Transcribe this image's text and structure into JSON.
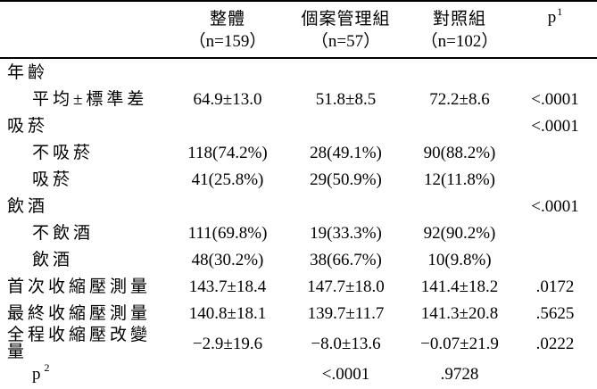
{
  "table": {
    "header": {
      "row_label": "",
      "columns": [
        {
          "title": "整體",
          "n": "（n=159）"
        },
        {
          "title": "個案管理組",
          "n": "（n=57）"
        },
        {
          "title": "對照組",
          "n": "（n=102）"
        }
      ],
      "p_label": "p",
      "p_sup": "1"
    },
    "rows": [
      {
        "label": "年齡",
        "indent": false,
        "values": [
          "",
          "",
          "",
          ""
        ]
      },
      {
        "label": "平均±標準差",
        "indent": true,
        "values": [
          "64.9±13.0",
          "51.8±8.5",
          "72.2±8.6",
          "<.0001"
        ]
      },
      {
        "label": "吸菸",
        "indent": false,
        "values": [
          "",
          "",
          "",
          "<.0001"
        ]
      },
      {
        "label": "不吸菸",
        "indent": true,
        "values": [
          "118(74.2%)",
          "28(49.1%)",
          "90(88.2%)",
          ""
        ]
      },
      {
        "label": "吸菸",
        "indent": true,
        "values": [
          "41(25.8%)",
          "29(50.9%)",
          "12(11.8%)",
          ""
        ]
      },
      {
        "label": "飲酒",
        "indent": false,
        "values": [
          "",
          "",
          "",
          "<.0001"
        ]
      },
      {
        "label": "不飲酒",
        "indent": true,
        "values": [
          "111(69.8%)",
          "19(33.3%)",
          "92(90.2%)",
          ""
        ]
      },
      {
        "label": "飲酒",
        "indent": true,
        "values": [
          "48(30.2%)",
          "38(66.7%)",
          "10(9.8%)",
          ""
        ]
      },
      {
        "label": "首次收縮壓測量",
        "indent": false,
        "values": [
          "143.7±18.4",
          "147.7±18.0",
          "141.4±18.2",
          ".0172"
        ]
      },
      {
        "label": "最終收縮壓測量",
        "indent": false,
        "values": [
          "140.8±18.1",
          "139.7±11.7",
          "141.3±20.8",
          ".5625"
        ]
      },
      {
        "label": "全程收縮壓改變量",
        "indent": false,
        "values": [
          "−2.9±19.6",
          "−8.0±13.6",
          "−0.07±21.9",
          ".0222"
        ]
      },
      {
        "label": "p",
        "sup": "2",
        "indent": true,
        "values": [
          "",
          "<.0001",
          ".9728",
          ""
        ]
      }
    ]
  }
}
